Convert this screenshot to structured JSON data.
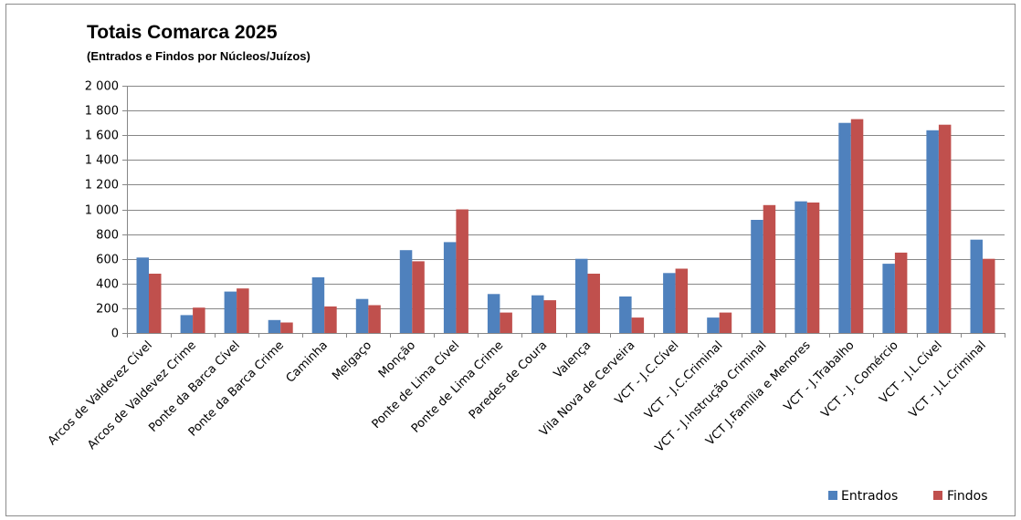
{
  "chart_data": {
    "type": "bar",
    "title": "Totais Comarca 2025",
    "subtitle": "(Entrados e Findos por Núcleos/Juízos)",
    "xlabel": "",
    "ylabel": "",
    "ylim": [
      0,
      2000
    ],
    "yticks": [
      0,
      200,
      400,
      600,
      800,
      1000,
      1200,
      1400,
      1600,
      1800,
      2000
    ],
    "ytick_labels": [
      "0",
      "200",
      "400",
      "600",
      "800",
      "1 000",
      "1 200",
      "1 400",
      "1 600",
      "1 800",
      "2 000"
    ],
    "grid": "horizontal",
    "legend": "bottom-right",
    "categories": [
      "Arcos de Valdevez Cível",
      "Arcos de Valdevez Crime",
      "Ponte da Barca Cível",
      "Ponte da Barca Crime",
      "Caminha",
      "Melgaço",
      "Monção",
      "Ponte de Lima Cível",
      "Ponte de Lima Crime",
      "Paredes de Coura",
      "Valença",
      "Vila Nova de Cerveira",
      "VCT - J.C.Cível",
      "VCT - J.C.Criminal",
      "VCT - J.Instrução Criminal",
      "VCT J.Família e Menores",
      "VCT - J.Trabalho",
      "VCT - J. Comércio",
      "VCT - J.L.Cível",
      "VCT - J.L.Criminal"
    ],
    "series": [
      {
        "name": "Entrados",
        "color": "#4f81bd",
        "values": [
          610,
          145,
          335,
          105,
          450,
          275,
          670,
          735,
          315,
          305,
          600,
          295,
          485,
          125,
          915,
          1065,
          1700,
          560,
          1640,
          755
        ]
      },
      {
        "name": "Findos",
        "color": "#c0504d",
        "values": [
          480,
          205,
          360,
          85,
          215,
          225,
          580,
          1000,
          165,
          265,
          480,
          125,
          520,
          165,
          1035,
          1055,
          1730,
          650,
          1685,
          600
        ]
      }
    ]
  }
}
